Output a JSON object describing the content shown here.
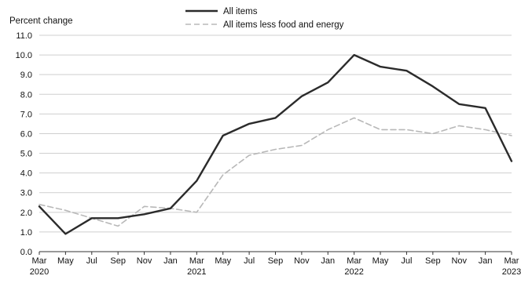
{
  "chart_data": {
    "type": "line",
    "title": "",
    "ylabel": "Percent change",
    "xlabel": "",
    "ylim": [
      0,
      11
    ],
    "yticks": [
      "0.0",
      "1.0",
      "2.0",
      "3.0",
      "4.0",
      "5.0",
      "6.0",
      "7.0",
      "8.0",
      "9.0",
      "10.0",
      "11.0"
    ],
    "x_tick_labels": [
      {
        "month": "Mar",
        "year": "2020"
      },
      {
        "month": "May",
        "year": ""
      },
      {
        "month": "Jul",
        "year": ""
      },
      {
        "month": "Sep",
        "year": ""
      },
      {
        "month": "Nov",
        "year": ""
      },
      {
        "month": "Jan",
        "year": ""
      },
      {
        "month": "Mar",
        "year": "2021"
      },
      {
        "month": "May",
        "year": ""
      },
      {
        "month": "Jul",
        "year": ""
      },
      {
        "month": "Sep",
        "year": ""
      },
      {
        "month": "Nov",
        "year": ""
      },
      {
        "month": "Jan",
        "year": ""
      },
      {
        "month": "Mar",
        "year": "2022"
      },
      {
        "month": "May",
        "year": ""
      },
      {
        "month": "Jul",
        "year": ""
      },
      {
        "month": "Sep",
        "year": ""
      },
      {
        "month": "Nov",
        "year": ""
      },
      {
        "month": "Jan",
        "year": ""
      },
      {
        "month": "Mar",
        "year": "2023"
      }
    ],
    "grid": true,
    "legend_position": "top-center",
    "series": [
      {
        "name": "All items",
        "color": "#2b2b2b",
        "style": "solid",
        "values": [
          2.3,
          0.9,
          1.7,
          1.7,
          1.9,
          2.2,
          3.6,
          5.9,
          6.5,
          6.8,
          7.9,
          8.6,
          10.0,
          9.4,
          9.2,
          8.4,
          7.5,
          7.3,
          4.6
        ]
      },
      {
        "name": "All items less food and energy",
        "color": "#b8b8b8",
        "style": "dashed",
        "values": [
          2.4,
          2.1,
          1.7,
          1.3,
          2.3,
          2.2,
          2.0,
          3.9,
          4.9,
          5.2,
          5.4,
          6.2,
          6.8,
          6.2,
          6.2,
          6.0,
          6.4,
          6.2,
          5.9
        ]
      }
    ]
  }
}
